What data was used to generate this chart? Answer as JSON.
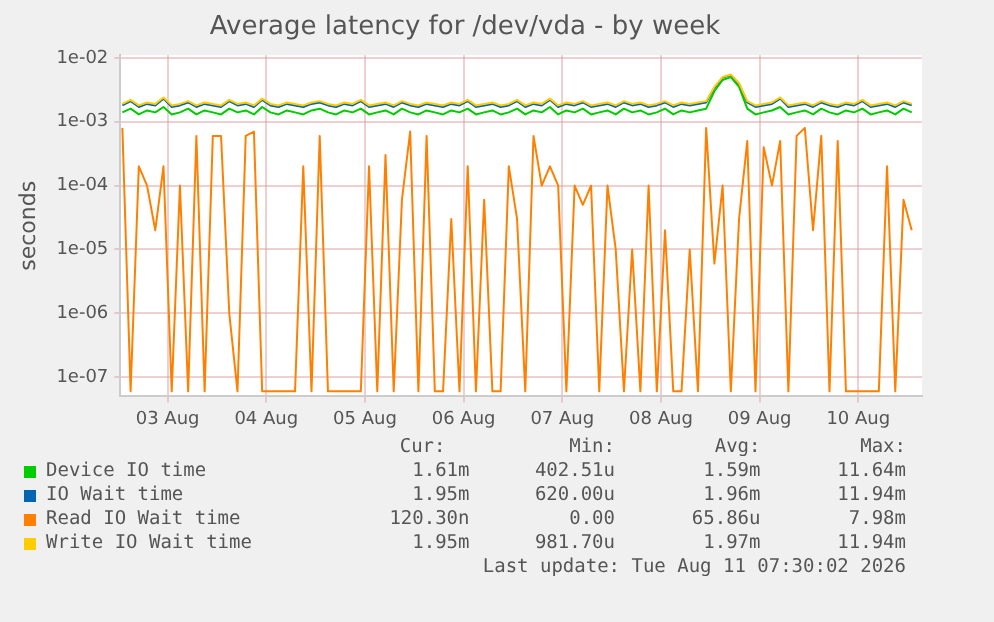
{
  "chart_data": {
    "type": "line",
    "title": "Average latency for /dev/vda - by week",
    "ylabel": "seconds",
    "log": "y",
    "grid": true,
    "legend": "bottom",
    "marker": "none",
    "line_style": "solid",
    "ylim": [
      5e-08,
      0.011
    ],
    "yticks": [
      {
        "value": 0.01,
        "label": "1e-02"
      },
      {
        "value": 0.001,
        "label": "1e-03"
      },
      {
        "value": 0.0001,
        "label": "1e-04"
      },
      {
        "value": 1e-05,
        "label": "1e-05"
      },
      {
        "value": 1e-06,
        "label": "1e-06"
      },
      {
        "value": 1e-07,
        "label": "1e-07"
      }
    ],
    "xlim": [
      "2026-08-03T00:30",
      "2026-08-11T03:30"
    ],
    "xticks": [
      {
        "value": "2026-08-03T12:00",
        "label": "03 Aug"
      },
      {
        "value": "2026-08-04T12:00",
        "label": "04 Aug"
      },
      {
        "value": "2026-08-05T12:00",
        "label": "05 Aug"
      },
      {
        "value": "2026-08-06T12:00",
        "label": "06 Aug"
      },
      {
        "value": "2026-08-07T12:00",
        "label": "07 Aug"
      },
      {
        "value": "2026-08-08T12:00",
        "label": "08 Aug"
      },
      {
        "value": "2026-08-09T12:00",
        "label": "09 Aug"
      },
      {
        "value": "2026-08-10T12:00",
        "label": "10 Aug"
      }
    ],
    "x": [
      "2026-08-03T01:00",
      "2026-08-03T03:00",
      "2026-08-03T05:00",
      "2026-08-03T07:00",
      "2026-08-03T09:00",
      "2026-08-03T11:00",
      "2026-08-03T13:00",
      "2026-08-03T15:00",
      "2026-08-03T17:00",
      "2026-08-03T19:00",
      "2026-08-03T21:00",
      "2026-08-03T23:00",
      "2026-08-04T01:00",
      "2026-08-04T03:00",
      "2026-08-04T05:00",
      "2026-08-04T07:00",
      "2026-08-04T09:00",
      "2026-08-04T11:00",
      "2026-08-04T13:00",
      "2026-08-04T15:00",
      "2026-08-04T17:00",
      "2026-08-04T19:00",
      "2026-08-04T21:00",
      "2026-08-04T23:00",
      "2026-08-05T01:00",
      "2026-08-05T03:00",
      "2026-08-05T05:00",
      "2026-08-05T07:00",
      "2026-08-05T09:00",
      "2026-08-05T11:00",
      "2026-08-05T13:00",
      "2026-08-05T15:00",
      "2026-08-05T17:00",
      "2026-08-05T19:00",
      "2026-08-05T21:00",
      "2026-08-05T23:00",
      "2026-08-06T01:00",
      "2026-08-06T03:00",
      "2026-08-06T05:00",
      "2026-08-06T07:00",
      "2026-08-06T09:00",
      "2026-08-06T11:00",
      "2026-08-06T13:00",
      "2026-08-06T15:00",
      "2026-08-06T17:00",
      "2026-08-06T19:00",
      "2026-08-06T21:00",
      "2026-08-06T23:00",
      "2026-08-07T01:00",
      "2026-08-07T03:00",
      "2026-08-07T05:00",
      "2026-08-07T07:00",
      "2026-08-07T09:00",
      "2026-08-07T11:00",
      "2026-08-07T13:00",
      "2026-08-07T15:00",
      "2026-08-07T17:00",
      "2026-08-07T19:00",
      "2026-08-07T21:00",
      "2026-08-07T23:00",
      "2026-08-08T01:00",
      "2026-08-08T03:00",
      "2026-08-08T05:00",
      "2026-08-08T07:00",
      "2026-08-08T09:00",
      "2026-08-08T11:00",
      "2026-08-08T13:00",
      "2026-08-08T15:00",
      "2026-08-08T17:00",
      "2026-08-08T19:00",
      "2026-08-08T21:00",
      "2026-08-08T23:00",
      "2026-08-09T01:00",
      "2026-08-09T03:00",
      "2026-08-09T05:00",
      "2026-08-09T07:00",
      "2026-08-09T09:00",
      "2026-08-09T11:00",
      "2026-08-09T13:00",
      "2026-08-09T15:00",
      "2026-08-09T17:00",
      "2026-08-09T19:00",
      "2026-08-09T21:00",
      "2026-08-09T23:00",
      "2026-08-10T01:00",
      "2026-08-10T03:00",
      "2026-08-10T05:00",
      "2026-08-10T07:00",
      "2026-08-10T09:00",
      "2026-08-10T11:00",
      "2026-08-10T13:00",
      "2026-08-10T15:00",
      "2026-08-10T17:00",
      "2026-08-10T19:00",
      "2026-08-10T21:00",
      "2026-08-10T23:00",
      "2026-08-11T01:00"
    ],
    "series": [
      {
        "name": "Device IO time",
        "color": "#00cc00",
        "values": [
          0.0014,
          0.0016,
          0.0013,
          0.0015,
          0.0014,
          0.0017,
          0.0013,
          0.0014,
          0.0016,
          0.0013,
          0.0015,
          0.0014,
          0.0013,
          0.0016,
          0.0014,
          0.0015,
          0.0013,
          0.0017,
          0.0014,
          0.0013,
          0.0015,
          0.0014,
          0.0013,
          0.0015,
          0.0016,
          0.0014,
          0.0013,
          0.0015,
          0.0014,
          0.0016,
          0.0013,
          0.0014,
          0.0015,
          0.0013,
          0.0016,
          0.0014,
          0.0013,
          0.0015,
          0.0014,
          0.0013,
          0.0015,
          0.0014,
          0.0016,
          0.0013,
          0.0014,
          0.0015,
          0.0013,
          0.0014,
          0.0016,
          0.0013,
          0.0015,
          0.0014,
          0.0017,
          0.0013,
          0.0015,
          0.0014,
          0.0016,
          0.0013,
          0.0014,
          0.0015,
          0.0013,
          0.0016,
          0.0014,
          0.0015,
          0.0013,
          0.0014,
          0.0016,
          0.0013,
          0.0015,
          0.0014,
          0.0015,
          0.0016,
          0.003,
          0.0045,
          0.005,
          0.0035,
          0.0016,
          0.0013,
          0.0014,
          0.0015,
          0.0017,
          0.0013,
          0.0014,
          0.0015,
          0.0013,
          0.0016,
          0.0014,
          0.0013,
          0.0015,
          0.0014,
          0.0016,
          0.0013,
          0.0014,
          0.0015,
          0.0013,
          0.0016,
          0.0014
        ]
      },
      {
        "name": "IO Wait time",
        "color": "#0066b3",
        "values": [
          0.0018,
          0.0021,
          0.0017,
          0.0019,
          0.0018,
          0.0023,
          0.0017,
          0.0018,
          0.002,
          0.0017,
          0.0019,
          0.0018,
          0.0017,
          0.0021,
          0.0018,
          0.0019,
          0.0017,
          0.0022,
          0.0018,
          0.0017,
          0.0019,
          0.0018,
          0.0017,
          0.0019,
          0.002,
          0.0018,
          0.0017,
          0.0019,
          0.0018,
          0.0021,
          0.0017,
          0.0018,
          0.0019,
          0.0017,
          0.002,
          0.0018,
          0.0017,
          0.0019,
          0.0018,
          0.0017,
          0.0019,
          0.0018,
          0.0021,
          0.0017,
          0.0018,
          0.0019,
          0.0017,
          0.0018,
          0.0021,
          0.0017,
          0.0019,
          0.0018,
          0.0022,
          0.0017,
          0.0019,
          0.0018,
          0.002,
          0.0017,
          0.0018,
          0.0019,
          0.0017,
          0.002,
          0.0018,
          0.0019,
          0.0017,
          0.0018,
          0.002,
          0.0017,
          0.0019,
          0.0018,
          0.0019,
          0.002,
          0.0034,
          0.0049,
          0.0054,
          0.0039,
          0.002,
          0.0017,
          0.0018,
          0.0019,
          0.0023,
          0.0017,
          0.0018,
          0.0019,
          0.0017,
          0.002,
          0.0018,
          0.0017,
          0.0019,
          0.0018,
          0.0021,
          0.0017,
          0.0018,
          0.0019,
          0.0017,
          0.002,
          0.0018
        ]
      },
      {
        "name": "Read IO Wait time",
        "color": "#ff8000",
        "values": [
          0.0008,
          6e-08,
          0.0002,
          0.0001,
          2e-05,
          0.0002,
          6e-08,
          0.0001,
          6e-08,
          0.0006,
          6e-08,
          0.0006,
          0.0006,
          1e-06,
          6e-08,
          0.0006,
          0.0007,
          6e-08,
          6e-08,
          6e-08,
          6e-08,
          6e-08,
          0.0002,
          6e-08,
          0.0006,
          6e-08,
          6e-08,
          6e-08,
          6e-08,
          6e-08,
          0.0002,
          6e-08,
          0.0003,
          6e-08,
          6e-05,
          0.0007,
          6e-08,
          0.0006,
          6e-08,
          6e-08,
          3e-05,
          6e-08,
          0.0002,
          6e-08,
          6e-05,
          6e-08,
          6e-08,
          0.0002,
          3e-05,
          6e-08,
          0.0006,
          0.0001,
          0.0002,
          0.0001,
          6e-08,
          0.0001,
          5e-05,
          0.0001,
          6e-08,
          0.0001,
          1e-05,
          6e-08,
          1e-05,
          6e-08,
          0.0001,
          6e-08,
          2e-05,
          6e-08,
          6e-08,
          1e-05,
          6e-08,
          0.0008,
          6e-06,
          0.0001,
          6e-08,
          3e-05,
          0.0005,
          6e-08,
          0.0004,
          0.0001,
          0.0005,
          6e-08,
          0.0006,
          0.0008,
          2e-05,
          0.0006,
          6e-08,
          0.0005,
          6e-08,
          6e-08,
          6e-08,
          6e-08,
          6e-08,
          0.0002,
          6e-08,
          6e-05,
          2e-05
        ]
      },
      {
        "name": "Write IO Wait time",
        "color": "#ffcc00",
        "values": [
          0.0019,
          0.0022,
          0.0018,
          0.002,
          0.0019,
          0.0024,
          0.0018,
          0.0019,
          0.0021,
          0.0018,
          0.002,
          0.0019,
          0.0018,
          0.0022,
          0.0019,
          0.002,
          0.0018,
          0.0023,
          0.0019,
          0.0018,
          0.002,
          0.0019,
          0.0018,
          0.002,
          0.0021,
          0.0019,
          0.0018,
          0.002,
          0.0019,
          0.0022,
          0.0018,
          0.0019,
          0.002,
          0.0018,
          0.0021,
          0.0019,
          0.0018,
          0.002,
          0.0019,
          0.0018,
          0.002,
          0.0019,
          0.0022,
          0.0018,
          0.0019,
          0.002,
          0.0018,
          0.0019,
          0.0022,
          0.0018,
          0.002,
          0.0019,
          0.0023,
          0.0018,
          0.002,
          0.0019,
          0.0021,
          0.0018,
          0.0019,
          0.002,
          0.0018,
          0.0021,
          0.0019,
          0.002,
          0.0018,
          0.0019,
          0.0021,
          0.0018,
          0.002,
          0.0019,
          0.002,
          0.0021,
          0.0035,
          0.005,
          0.0055,
          0.004,
          0.0021,
          0.0018,
          0.0019,
          0.002,
          0.0024,
          0.0018,
          0.0019,
          0.002,
          0.0018,
          0.0021,
          0.0019,
          0.0018,
          0.002,
          0.0019,
          0.0022,
          0.0018,
          0.0019,
          0.002,
          0.0018,
          0.0021,
          0.0019
        ]
      }
    ],
    "annotations": [
      "Cur:",
      "Min:",
      "Avg:",
      "Max:",
      "1.61m",
      "402.51u",
      "1.59m",
      "11.64m",
      "1.95m",
      "620.00u",
      "1.96m",
      "11.94m",
      "120.30n",
      "0.00",
      "65.86u",
      "7.98m",
      "1.95m",
      "981.70u",
      "1.97m",
      "11.94m",
      "Last update: Tue Aug 11 07:30:02 2026"
    ]
  }
}
